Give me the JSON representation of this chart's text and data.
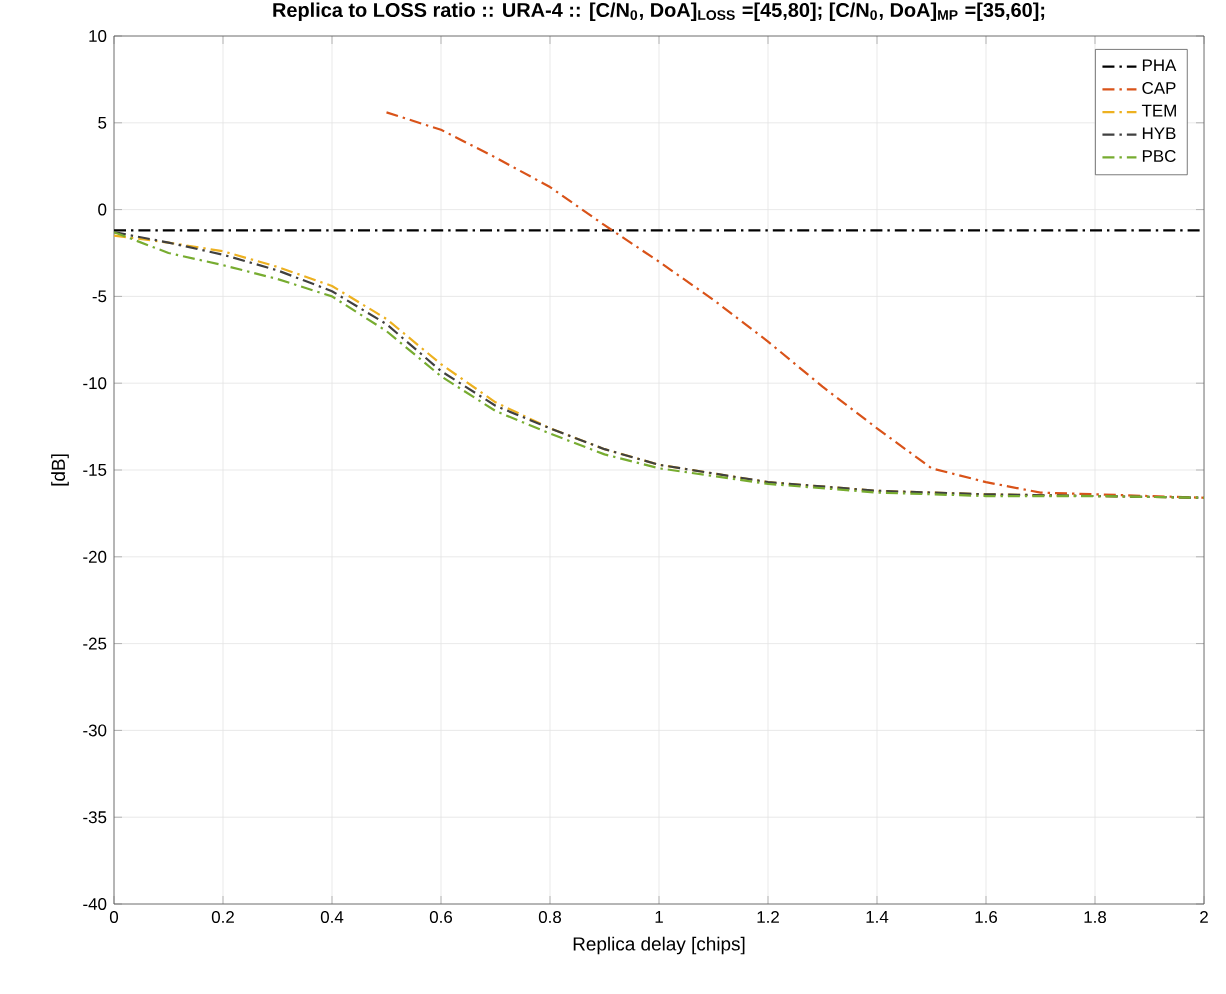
{
  "chart_data": {
    "type": "line",
    "title": "Replica to LOSS ratio :: URA-4 :: [C/N$_{0}$, DoA]$_{LOSS}$ =[45,80]; [C/N$_{0}$, DoA]$_{MP}$ =[35,60];",
    "xlabel": "Replica delay [chips]",
    "ylabel": "[dB]",
    "xlim": [
      0,
      2
    ],
    "ylim": [
      -40,
      10
    ],
    "xticks": [
      0,
      0.2,
      0.4,
      0.6,
      0.8,
      1,
      1.2,
      1.4,
      1.6,
      1.8,
      2
    ],
    "yticks": [
      -40,
      -35,
      -30,
      -25,
      -20,
      -15,
      -10,
      -5,
      0,
      5,
      10
    ],
    "grid": true,
    "legend": "top right",
    "marker": "none",
    "line_style": "dashdot",
    "series": [
      {
        "name": "PHA",
        "color": "#000000",
        "x": [
          0,
          2
        ],
        "values": [
          -1.2,
          -1.2
        ]
      },
      {
        "name": "CAP",
        "color": "#d95319",
        "x": [
          0.5,
          0.6,
          0.7,
          0.8,
          0.9,
          1.0,
          1.1,
          1.2,
          1.3,
          1.4,
          1.5,
          1.6,
          1.7,
          1.8,
          1.9,
          2.0
        ],
        "values": [
          5.6,
          4.6,
          3.0,
          1.3,
          -0.9,
          -3.0,
          -5.2,
          -7.6,
          -10.2,
          -12.6,
          -14.9,
          -15.7,
          -16.3,
          -16.4,
          -16.5,
          -16.6
        ]
      },
      {
        "name": "TEM",
        "color": "#edb120",
        "x": [
          0,
          0.1,
          0.2,
          0.3,
          0.4,
          0.5,
          0.6,
          0.7,
          0.8,
          0.9,
          1.0,
          1.2,
          1.4,
          1.6,
          1.8,
          2.0
        ],
        "values": [
          -1.5,
          -1.9,
          -2.4,
          -3.3,
          -4.4,
          -6.3,
          -8.9,
          -11.1,
          -12.6,
          -13.8,
          -14.7,
          -15.7,
          -16.2,
          -16.4,
          -16.5,
          -16.6
        ]
      },
      {
        "name": "HYB",
        "color": "#404040",
        "x": [
          0,
          0.1,
          0.2,
          0.3,
          0.4,
          0.5,
          0.6,
          0.7,
          0.8,
          0.9,
          1.0,
          1.2,
          1.4,
          1.6,
          1.8,
          2.0
        ],
        "values": [
          -1.3,
          -1.9,
          -2.6,
          -3.5,
          -4.7,
          -6.6,
          -9.3,
          -11.3,
          -12.6,
          -13.8,
          -14.7,
          -15.7,
          -16.2,
          -16.4,
          -16.5,
          -16.6
        ]
      },
      {
        "name": "PBC",
        "color": "#77ac30",
        "x": [
          0,
          0.1,
          0.2,
          0.3,
          0.4,
          0.5,
          0.6,
          0.7,
          0.8,
          0.9,
          1.0,
          1.2,
          1.4,
          1.6,
          1.8,
          2.0
        ],
        "values": [
          -1.3,
          -2.5,
          -3.2,
          -4.0,
          -5.0,
          -7.0,
          -9.6,
          -11.6,
          -12.9,
          -14.1,
          -14.9,
          -15.8,
          -16.3,
          -16.5,
          -16.5,
          -16.6
        ]
      }
    ]
  }
}
